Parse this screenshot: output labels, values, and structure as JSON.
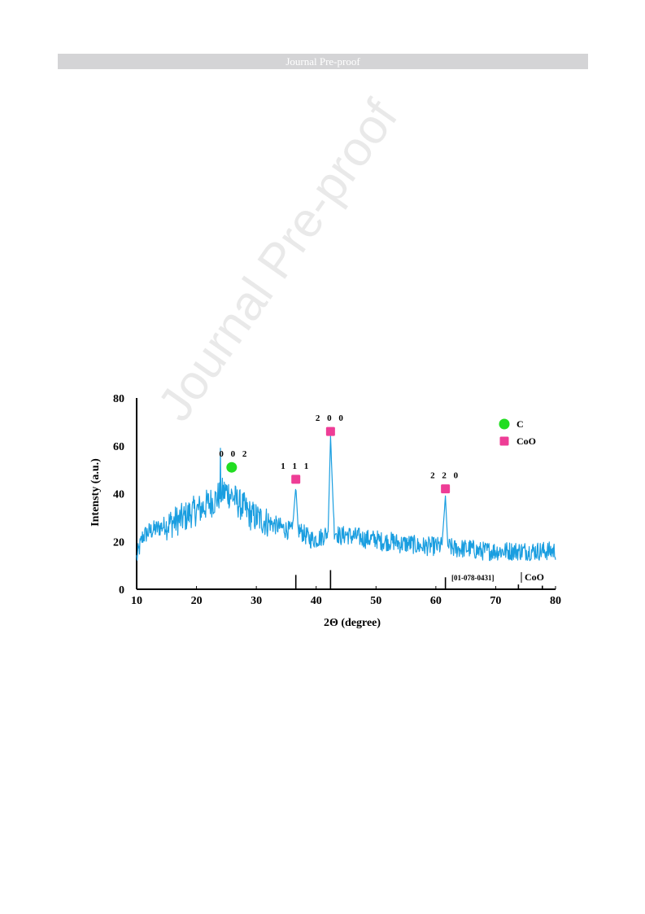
{
  "header": {
    "banner_text": "Journal Pre-proof"
  },
  "watermark": {
    "text": "Journal Pre-proof"
  },
  "chart_data": {
    "type": "line",
    "xlabel": "2Θ (degree)",
    "ylabel": "Intensty (a.u.)",
    "xlim": [
      10,
      80
    ],
    "ylim": [
      0,
      80
    ],
    "x_ticks": [
      10,
      20,
      30,
      40,
      50,
      60,
      70,
      80
    ],
    "y_ticks": [
      0,
      20,
      40,
      60,
      80
    ],
    "grid": false,
    "line_color": "#1a9ee0",
    "series": [
      {
        "x": [
          10,
          11,
          12,
          13,
          14,
          15,
          16,
          17,
          18,
          19,
          20,
          21,
          22,
          23,
          24,
          25,
          26,
          27,
          28,
          29,
          30,
          31,
          32,
          33,
          34,
          35,
          36,
          36.6,
          37,
          38,
          39,
          40,
          41,
          42,
          42.4,
          43,
          44,
          45,
          46,
          47,
          48,
          49,
          50,
          51,
          52,
          53,
          54,
          55,
          56,
          57,
          58,
          59,
          60,
          61,
          61.6,
          62,
          63,
          64,
          65,
          66,
          67,
          68,
          69,
          70,
          71,
          72,
          73,
          74,
          75,
          76,
          77,
          78,
          79,
          80
        ],
        "values": [
          13,
          22,
          24,
          25,
          26,
          27,
          28,
          29,
          30,
          32,
          33,
          34,
          36,
          37,
          40,
          41,
          39,
          36,
          34,
          31,
          30,
          29,
          28,
          27,
          26,
          25,
          24,
          43,
          25,
          23,
          21,
          21,
          22,
          24,
          64,
          25,
          22,
          23,
          22,
          22,
          21,
          21,
          21,
          20,
          20,
          20,
          19,
          19,
          19,
          18,
          18,
          18,
          18,
          18,
          39,
          18,
          17,
          17,
          17,
          17,
          16,
          16,
          16,
          16,
          16,
          16,
          16,
          16,
          16,
          16,
          16,
          16,
          16,
          16
        ]
      }
    ],
    "peak_labels": [
      {
        "hkl": "0 0 2",
        "x": 25.2,
        "y": 51,
        "phase": "C"
      },
      {
        "hkl": "1 1 1",
        "x": 36.6,
        "y": 46,
        "phase": "CoO"
      },
      {
        "hkl": "2 0 0",
        "x": 42.4,
        "y": 66,
        "phase": "CoO"
      },
      {
        "hkl": "2 2 0",
        "x": 61.6,
        "y": 42,
        "phase": "CoO"
      }
    ],
    "legend": {
      "position": "top-right",
      "entries": [
        {
          "label": "C",
          "marker": "circle",
          "color": "#22dd22"
        },
        {
          "label": "CoO",
          "marker": "square",
          "color": "#ee3d96"
        }
      ]
    },
    "reference_pattern": {
      "label_code": "[01-078-0431]",
      "label_phase": "CoO",
      "lines": [
        {
          "x": 36.6,
          "height": 6
        },
        {
          "x": 42.4,
          "height": 8
        },
        {
          "x": 61.6,
          "height": 5
        },
        {
          "x": 73.8,
          "height": 2
        },
        {
          "x": 77.8,
          "height": 1.5
        }
      ]
    }
  }
}
